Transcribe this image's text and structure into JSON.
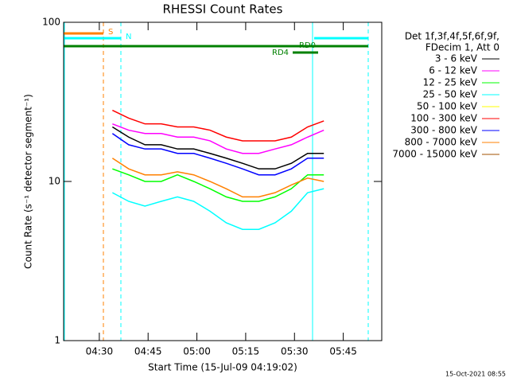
{
  "chart_data": {
    "type": "line",
    "title": "RHESSI Count Rates",
    "x_label": "Start Time (15-Jul-09 04:19:02)",
    "y_label": "Count Rate (s⁻¹ detector segment⁻¹)",
    "legend_header": [
      "Det 1f,3f,4f,5f,6f,9f,",
      "FDecim 1, Att 0"
    ],
    "flags": [
      {
        "label": "S",
        "color": "#ff8000"
      },
      {
        "label": "N",
        "color": "#00ffff"
      },
      {
        "label": "RD0",
        "color": "#008000"
      },
      {
        "label": "RD4",
        "color": "#008000"
      }
    ],
    "timestamp": "15-Oct-2021 08:55",
    "log_y": true,
    "xlim": [
      0,
      97.8
    ],
    "ylim": [
      1,
      100
    ],
    "xticks": [
      {
        "value": 10.97,
        "label": "04:30"
      },
      {
        "value": 25.97,
        "label": "04:45"
      },
      {
        "value": 40.97,
        "label": "05:00"
      },
      {
        "value": 55.97,
        "label": "05:15"
      },
      {
        "value": 70.97,
        "label": "05:30"
      },
      {
        "value": 85.97,
        "label": "05:45"
      }
    ],
    "yticks": [
      1,
      10,
      100
    ],
    "x": [
      15,
      20,
      25,
      30,
      35,
      40,
      45,
      50,
      55,
      60,
      65,
      70,
      75,
      80
    ],
    "series": [
      {
        "name": "3 - 6 keV",
        "color": "#000000",
        "values": [
          22,
          19,
          17,
          17,
          16,
          16,
          15,
          14,
          13,
          12,
          12,
          13,
          15,
          15
        ]
      },
      {
        "name": "6 - 12 keV",
        "color": "#ff00ff",
        "values": [
          23,
          21,
          20,
          20,
          19,
          19,
          18,
          16,
          15,
          15,
          16,
          17,
          19,
          21
        ]
      },
      {
        "name": "12 - 25 keV",
        "color": "#00ff00",
        "values": [
          12,
          11,
          10,
          10,
          11,
          10,
          9,
          8,
          7.5,
          7.5,
          8,
          9,
          11,
          11
        ]
      },
      {
        "name": "25 - 50 keV",
        "color": "#00ffff",
        "values": [
          8.5,
          7.5,
          7,
          7.5,
          8,
          7.5,
          6.5,
          5.5,
          5,
          5,
          5.5,
          6.5,
          8.5,
          9
        ]
      },
      {
        "name": "50 - 100 keV",
        "color": "#ffff00",
        "values": [
          null,
          null,
          null,
          null,
          null,
          null,
          null,
          null,
          null,
          null,
          null,
          null,
          null,
          null
        ]
      },
      {
        "name": "100 - 300 keV",
        "color": "#ff0000",
        "values": [
          28,
          25,
          23,
          23,
          22,
          22,
          21,
          19,
          18,
          18,
          18,
          19,
          22,
          24
        ]
      },
      {
        "name": "300 - 800 keV",
        "color": "#0000ff",
        "values": [
          20,
          17,
          16,
          16,
          15,
          15,
          14,
          13,
          12,
          11,
          11,
          12,
          14,
          14
        ]
      },
      {
        "name": "800 - 7000 keV",
        "color": "#ff8000",
        "values": [
          14,
          12,
          11,
          11,
          11.5,
          11,
          10,
          9,
          8,
          8,
          8.5,
          9.5,
          10.5,
          10
        ]
      },
      {
        "name": "7000 - 15000 keV",
        "color": "#a05000",
        "values": [
          null,
          null,
          null,
          null,
          null,
          null,
          null,
          null,
          null,
          null,
          null,
          null,
          null,
          null
        ]
      }
    ]
  }
}
